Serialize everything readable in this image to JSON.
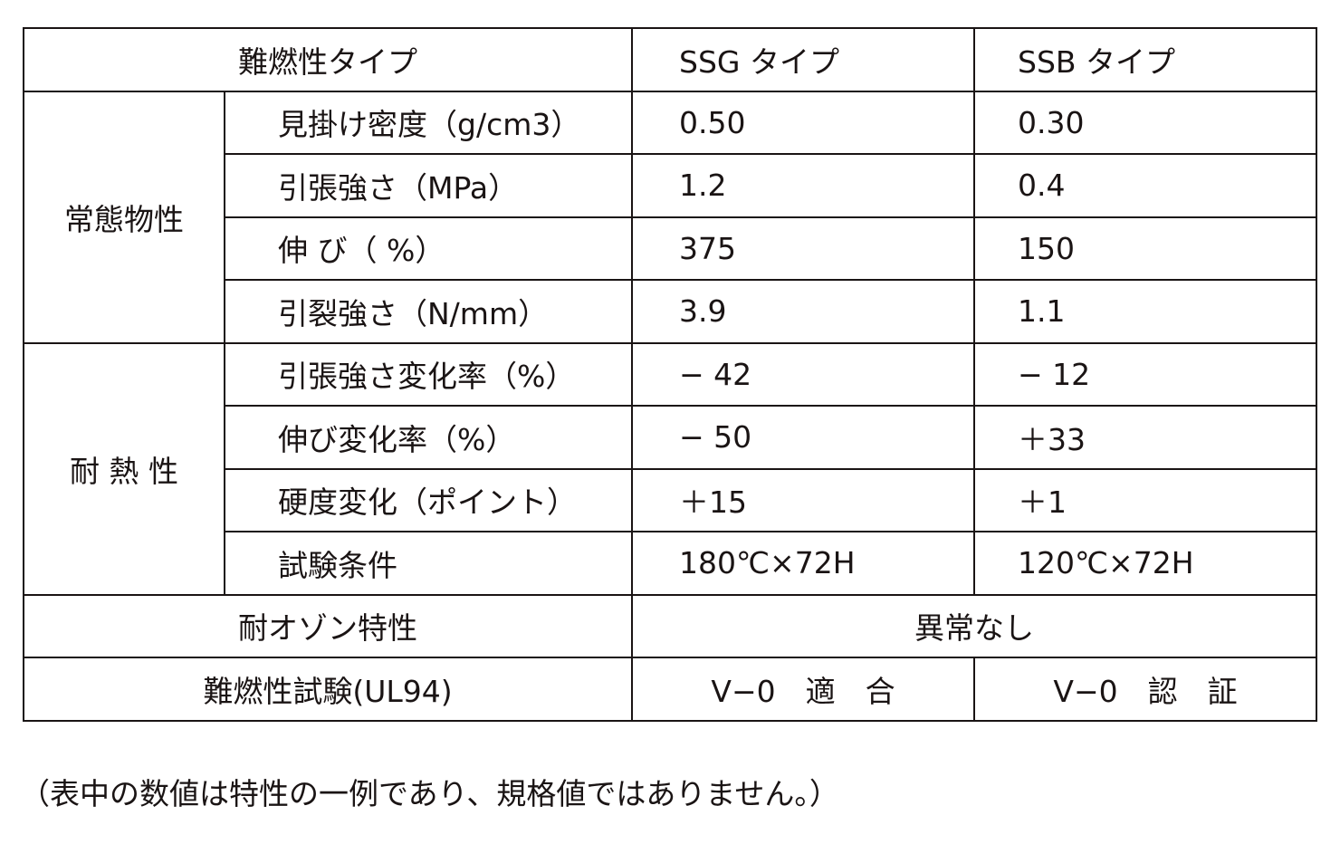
{
  "header": {
    "type_label": "難燃性タイプ",
    "col_ssg": "SSG タイプ",
    "col_ssb": "SSB タイプ"
  },
  "groups": [
    {
      "label": "常態物性",
      "rows": [
        {
          "item": "見掛け密度（g/cm3）",
          "ssg": "0.50",
          "ssb": "0.30"
        },
        {
          "item": "引張強さ（MPa）",
          "ssg": "1.2",
          "ssb": "0.4"
        },
        {
          "item": "伸 び（ %）",
          "ssg": "375",
          "ssb": "150"
        },
        {
          "item": "引裂強さ（N/mm）",
          "ssg": "3.9",
          "ssb": "1.1"
        }
      ]
    },
    {
      "label": "耐 熱 性",
      "rows": [
        {
          "item": "引張強さ変化率（%）",
          "ssg": "− 42",
          "ssb": "− 12"
        },
        {
          "item": "伸び変化率（%）",
          "ssg": "− 50",
          "ssb": "＋33"
        },
        {
          "item": "硬度変化（ポイント）",
          "ssg": "＋15",
          "ssb": "＋1"
        },
        {
          "item": "試験条件",
          "ssg": "180℃×72H",
          "ssb": "120℃×72H"
        }
      ]
    }
  ],
  "ozone": {
    "label": "耐オゾン特性",
    "value": "異常なし"
  },
  "flame": {
    "label": "難燃性試験(UL94)",
    "ssg": "V−0　適　合",
    "ssb": "V−0　認　証"
  },
  "footnote": "（表中の数値は特性の一例であり、規格値ではありません。）"
}
